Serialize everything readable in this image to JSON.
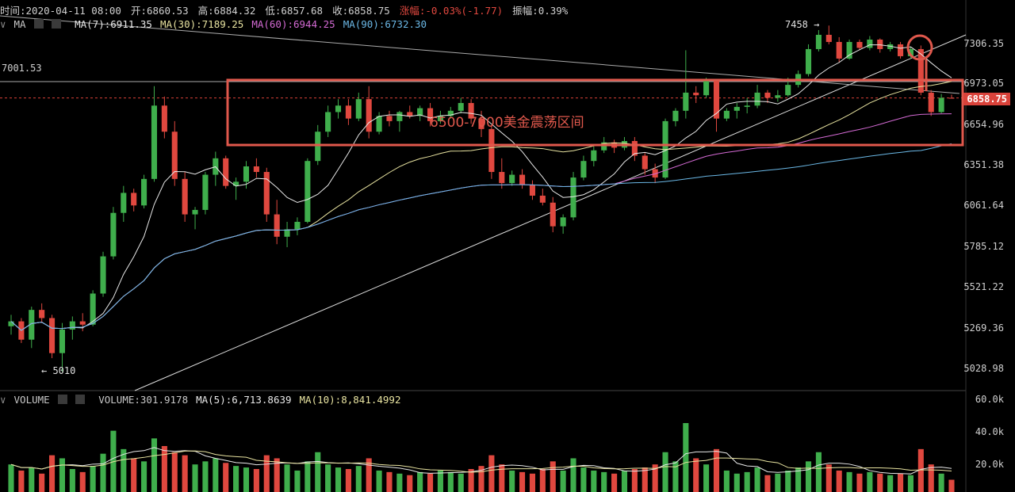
{
  "header": {
    "time": "时间:2020-04-11 08:00",
    "open": "开:6860.53",
    "high": "高:6884.32",
    "low": "低:6857.68",
    "close": "收:6858.75",
    "change": "涨幅:-0.03%(-1.77)",
    "amplitude": "振幅:0.39%"
  },
  "ma_bar": {
    "indicator": "MA",
    "ma7": "MA(7):6911.35",
    "ma30": "MA(30):7189.25",
    "ma60": "MA(60):6944.25",
    "ma90": "MA(90):6732.30"
  },
  "volume_bar": {
    "indicator": "VOLUME",
    "volume": "VOLUME:301.9178",
    "ma5": "MA(5):6,713.8639",
    "ma10": "MA(10):8,841.4992"
  },
  "price_axis": [
    "7306.35",
    "6973.05",
    "6654.96",
    "6351.38",
    "6061.64",
    "5785.12",
    "5521.22",
    "5269.36",
    "5028.98"
  ],
  "volume_axis": [
    "60.0k",
    "40.0k",
    "20.0k"
  ],
  "last_price": "6858.75",
  "level_label": "7001.53",
  "high_marker": "7458",
  "low_marker": "5010",
  "annotation": "6500-7000美金震荡区间",
  "colors": {
    "up": "#3fae4c",
    "down": "#e0483f",
    "ma7": "#e8e8e8",
    "ma30": "#e8e3a0",
    "ma60": "#d46ad4",
    "ma90": "#6bb8e6",
    "annot": "#e0584c"
  },
  "chart_data": {
    "type": "candlestick",
    "ohlc": [
      [
        5280,
        5350,
        5230,
        5310
      ],
      [
        5310,
        5330,
        5180,
        5200
      ],
      [
        5200,
        5400,
        5150,
        5380
      ],
      [
        5380,
        5420,
        5300,
        5330
      ],
      [
        5330,
        5350,
        5090,
        5120
      ],
      [
        5120,
        5300,
        5010,
        5260
      ],
      [
        5260,
        5340,
        5200,
        5310
      ],
      [
        5310,
        5360,
        5250,
        5290
      ],
      [
        5290,
        5500,
        5280,
        5480
      ],
      [
        5480,
        5750,
        5460,
        5720
      ],
      [
        5720,
        6050,
        5700,
        6010
      ],
      [
        6010,
        6200,
        5950,
        6150
      ],
      [
        6150,
        6180,
        6020,
        6060
      ],
      [
        6060,
        6280,
        6040,
        6250
      ],
      [
        6250,
        6950,
        6230,
        6800
      ],
      [
        6800,
        6870,
        6550,
        6600
      ],
      [
        6600,
        6680,
        6200,
        6250
      ],
      [
        6250,
        6300,
        5950,
        6000
      ],
      [
        6000,
        6050,
        5900,
        6030
      ],
      [
        6030,
        6300,
        6000,
        6280
      ],
      [
        6280,
        6450,
        6200,
        6400
      ],
      [
        6400,
        6420,
        6180,
        6200
      ],
      [
        6200,
        6260,
        6100,
        6230
      ],
      [
        6230,
        6380,
        6180,
        6340
      ],
      [
        6340,
        6400,
        6260,
        6300
      ],
      [
        6300,
        6330,
        5950,
        6000
      ],
      [
        6000,
        6100,
        5800,
        5850
      ],
      [
        5850,
        5950,
        5780,
        5900
      ],
      [
        5900,
        5980,
        5860,
        5950
      ],
      [
        5950,
        6400,
        5940,
        6380
      ],
      [
        6380,
        6650,
        6350,
        6600
      ],
      [
        6600,
        6800,
        6560,
        6750
      ],
      [
        6750,
        6850,
        6700,
        6800
      ],
      [
        6800,
        6850,
        6650,
        6700
      ],
      [
        6700,
        6900,
        6680,
        6850
      ],
      [
        6850,
        6950,
        6550,
        6600
      ],
      [
        6600,
        6750,
        6580,
        6720
      ],
      [
        6720,
        6760,
        6640,
        6680
      ],
      [
        6680,
        6760,
        6600,
        6750
      ],
      [
        6750,
        6800,
        6700,
        6720
      ],
      [
        6720,
        6800,
        6680,
        6780
      ],
      [
        6780,
        6820,
        6640,
        6680
      ],
      [
        6680,
        6760,
        6660,
        6720
      ],
      [
        6720,
        6790,
        6700,
        6760
      ],
      [
        6760,
        6860,
        6740,
        6820
      ],
      [
        6820,
        6850,
        6660,
        6700
      ],
      [
        6700,
        6760,
        6560,
        6620
      ],
      [
        6620,
        6650,
        6250,
        6300
      ],
      [
        6300,
        6400,
        6180,
        6220
      ],
      [
        6220,
        6310,
        6200,
        6280
      ],
      [
        6280,
        6320,
        6180,
        6210
      ],
      [
        6210,
        6240,
        6100,
        6130
      ],
      [
        6130,
        6180,
        6060,
        6080
      ],
      [
        6080,
        6120,
        5880,
        5920
      ],
      [
        5920,
        6000,
        5870,
        5980
      ],
      [
        5980,
        6300,
        5960,
        6260
      ],
      [
        6260,
        6420,
        6240,
        6380
      ],
      [
        6380,
        6500,
        6340,
        6460
      ],
      [
        6460,
        6560,
        6440,
        6520
      ],
      [
        6520,
        6540,
        6440,
        6480
      ],
      [
        6480,
        6560,
        6460,
        6530
      ],
      [
        6530,
        6560,
        6380,
        6420
      ],
      [
        6420,
        6440,
        6280,
        6320
      ],
      [
        6320,
        6360,
        6220,
        6260
      ],
      [
        6260,
        6700,
        6250,
        6680
      ],
      [
        6680,
        6780,
        6640,
        6760
      ],
      [
        6760,
        7250,
        6700,
        6900
      ],
      [
        6900,
        6950,
        6820,
        6880
      ],
      [
        6880,
        7020,
        6860,
        7000
      ],
      [
        7000,
        7010,
        6600,
        6700
      ],
      [
        6700,
        6780,
        6680,
        6760
      ],
      [
        6760,
        6820,
        6700,
        6790
      ],
      [
        6790,
        6860,
        6740,
        6800
      ],
      [
        6800,
        6960,
        6780,
        6900
      ],
      [
        6900,
        6920,
        6820,
        6860
      ],
      [
        6860,
        6920,
        6830,
        6880
      ],
      [
        6880,
        7020,
        6870,
        6960
      ],
      [
        6960,
        7080,
        6940,
        7050
      ],
      [
        7050,
        7300,
        7030,
        7260
      ],
      [
        7260,
        7420,
        7240,
        7380
      ],
      [
        7380,
        7458,
        7300,
        7320
      ],
      [
        7320,
        7360,
        7150,
        7180
      ],
      [
        7180,
        7340,
        7170,
        7320
      ],
      [
        7320,
        7340,
        7250,
        7270
      ],
      [
        7270,
        7370,
        7250,
        7340
      ],
      [
        7340,
        7350,
        7230,
        7260
      ],
      [
        7260,
        7320,
        7240,
        7300
      ],
      [
        7300,
        7320,
        7180,
        7200
      ],
      [
        7200,
        7280,
        7180,
        7260
      ],
      [
        7260,
        7290,
        6880,
        6900
      ],
      [
        6900,
        6920,
        6720,
        6750
      ],
      [
        6750,
        6890,
        6740,
        6860
      ],
      [
        6860,
        6884,
        6857,
        6858
      ]
    ],
    "volume": [
      18,
      14,
      16,
      12,
      24,
      22,
      15,
      13,
      17,
      25,
      40,
      28,
      22,
      20,
      35,
      30,
      26,
      24,
      18,
      20,
      22,
      19,
      17,
      16,
      15,
      24,
      22,
      18,
      14,
      20,
      26,
      18,
      16,
      15,
      17,
      22,
      14,
      13,
      12,
      11,
      13,
      12,
      14,
      13,
      12,
      15,
      17,
      24,
      18,
      14,
      13,
      12,
      15,
      20,
      14,
      22,
      16,
      14,
      13,
      12,
      14,
      15,
      16,
      18,
      26,
      20,
      45,
      22,
      18,
      28,
      14,
      12,
      13,
      16,
      11,
      12,
      14,
      16,
      20,
      26,
      18,
      14,
      13,
      12,
      13,
      12,
      11,
      12,
      11,
      28,
      18,
      12,
      8
    ],
    "price_ticks": [
      7306.35,
      6973.05,
      6654.96,
      6351.38,
      6061.64,
      5785.12,
      5521.22,
      5269.36,
      5028.98
    ],
    "volume_ticks": [
      60000,
      40000,
      20000
    ],
    "horizontal_level": 7001.53,
    "range_box": [
      6500,
      7000
    ],
    "annotation": "6500-7000美金震荡区间"
  }
}
